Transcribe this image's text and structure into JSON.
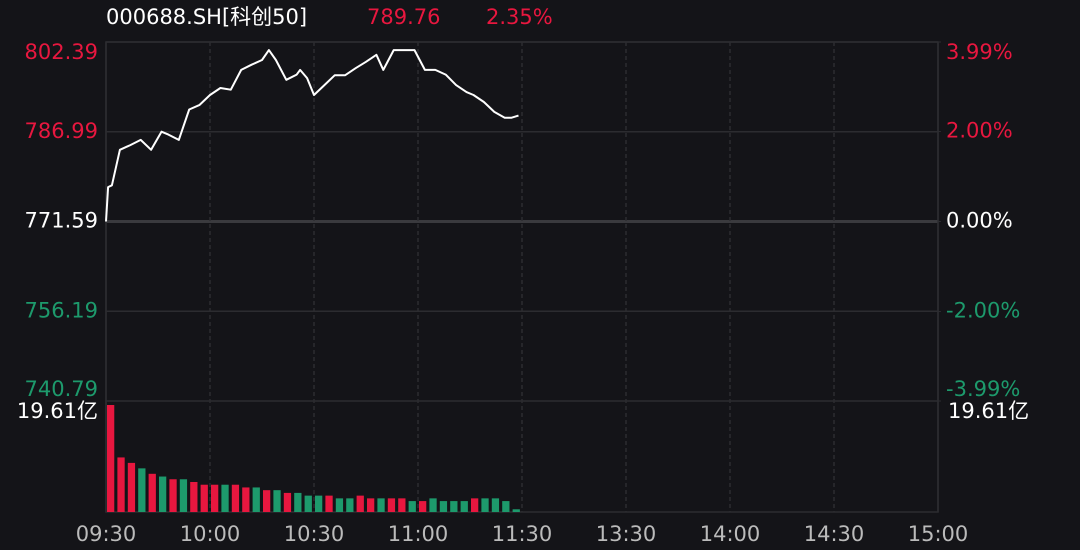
{
  "chart_data": {
    "type": "line",
    "title": "000688.SH[科创50]",
    "quote": {
      "values": [
        789.76,
        2.35
      ],
      "value_labels": [
        "789.76",
        "2.35%"
      ]
    },
    "x": [
      0,
      0.6,
      1.7,
      4,
      7,
      10,
      13,
      16,
      18,
      21,
      24,
      27,
      30,
      33,
      36,
      39,
      42,
      45,
      47,
      49,
      52,
      55,
      56,
      58,
      60,
      63,
      66,
      69,
      72,
      75,
      78,
      80,
      83,
      86,
      89,
      92,
      95,
      98,
      101,
      104,
      106,
      109,
      112,
      115,
      117,
      119
    ],
    "values": [
      771.59,
      777.5,
      777.8,
      783.9,
      784.7,
      785.6,
      783.9,
      787.0,
      786.5,
      785.6,
      790.8,
      791.6,
      793.3,
      794.5,
      794.2,
      797.6,
      798.5,
      799.3,
      801.0,
      799.3,
      795.9,
      796.8,
      797.6,
      796.2,
      793.3,
      795.0,
      796.7,
      796.7,
      797.9,
      799.0,
      800.2,
      797.6,
      801.0,
      801.0,
      801.0,
      797.6,
      797.6,
      796.8,
      795.0,
      793.8,
      793.3,
      792.1,
      790.4,
      789.4,
      789.4,
      789.76
    ],
    "color": "#ffffff",
    "up_color": "#e8173f",
    "down_color": "#1d9a6c",
    "xlim": [
      0,
      240
    ],
    "xticks": [
      {
        "value": 0,
        "label": "09:30"
      },
      {
        "value": 30,
        "label": "10:00"
      },
      {
        "value": 60,
        "label": "10:30"
      },
      {
        "value": 90,
        "label": "11:00"
      },
      {
        "value": 120,
        "label": "11:30"
      },
      {
        "value": 150,
        "label": "13:30"
      },
      {
        "value": 180,
        "label": "14:00"
      },
      {
        "value": 210,
        "label": "14:30"
      },
      {
        "value": 240,
        "label": "15:00"
      }
    ],
    "ylim": [
      740.79,
      802.39
    ],
    "yticks": [
      802.39,
      786.99,
      771.59,
      756.19,
      740.79
    ],
    "y2lim": [
      -3.99,
      3.99
    ],
    "y2ticks": [
      {
        "value": 3.99,
        "label": "3.99%"
      },
      {
        "value": 2.0,
        "label": "2.00%"
      },
      {
        "value": 0,
        "label": "0.00%"
      },
      {
        "value": -2.0,
        "label": "-2.00%"
      },
      {
        "value": -3.99,
        "label": "-3.99%"
      }
    ],
    "grid": true,
    "volume": {
      "x": [
        0,
        3,
        6,
        9,
        12,
        15,
        18,
        21,
        24,
        27,
        30,
        33,
        36,
        39,
        42,
        45,
        48,
        51,
        54,
        57,
        60,
        63,
        66,
        69,
        72,
        75,
        78,
        81,
        84,
        87,
        90,
        93,
        96,
        99,
        102,
        105,
        108,
        111,
        114,
        117
      ],
      "values": [
        19.61,
        10,
        9,
        8,
        7,
        6.5,
        6,
        6,
        5.5,
        5,
        5,
        5,
        5,
        4.5,
        4.5,
        4,
        4,
        3.5,
        3.5,
        3,
        3,
        3,
        2.5,
        2.5,
        3,
        2.5,
        2.5,
        2.5,
        2.5,
        2,
        2,
        2.5,
        2,
        2,
        2,
        2.5,
        2.5,
        2.5,
        2,
        0.5
      ],
      "colors": [
        "#e8173f",
        "#e8173f",
        "#e8173f",
        "#1d9a6c",
        "#e8173f",
        "#1d9a6c",
        "#e8173f",
        "#1d9a6c",
        "#e8173f",
        "#e8173f",
        "#e8173f",
        "#1d9a6c",
        "#e8173f",
        "#e8173f",
        "#1d9a6c",
        "#e8173f",
        "#1d9a6c",
        "#e8173f",
        "#1d9a6c",
        "#1d9a6c",
        "#1d9a6c",
        "#e8173f",
        "#1d9a6c",
        "#1d9a6c",
        "#e8173f",
        "#e8173f",
        "#1d9a6c",
        "#e8173f",
        "#e8173f",
        "#1d9a6c",
        "#e8173f",
        "#1d9a6c",
        "#1d9a6c",
        "#1d9a6c",
        "#1d9a6c",
        "#e8173f",
        "#1d9a6c",
        "#1d9a6c",
        "#1d9a6c",
        "#1d9a6c"
      ],
      "ylim": [
        0,
        19.61
      ],
      "max_label": "19.61亿"
    }
  }
}
